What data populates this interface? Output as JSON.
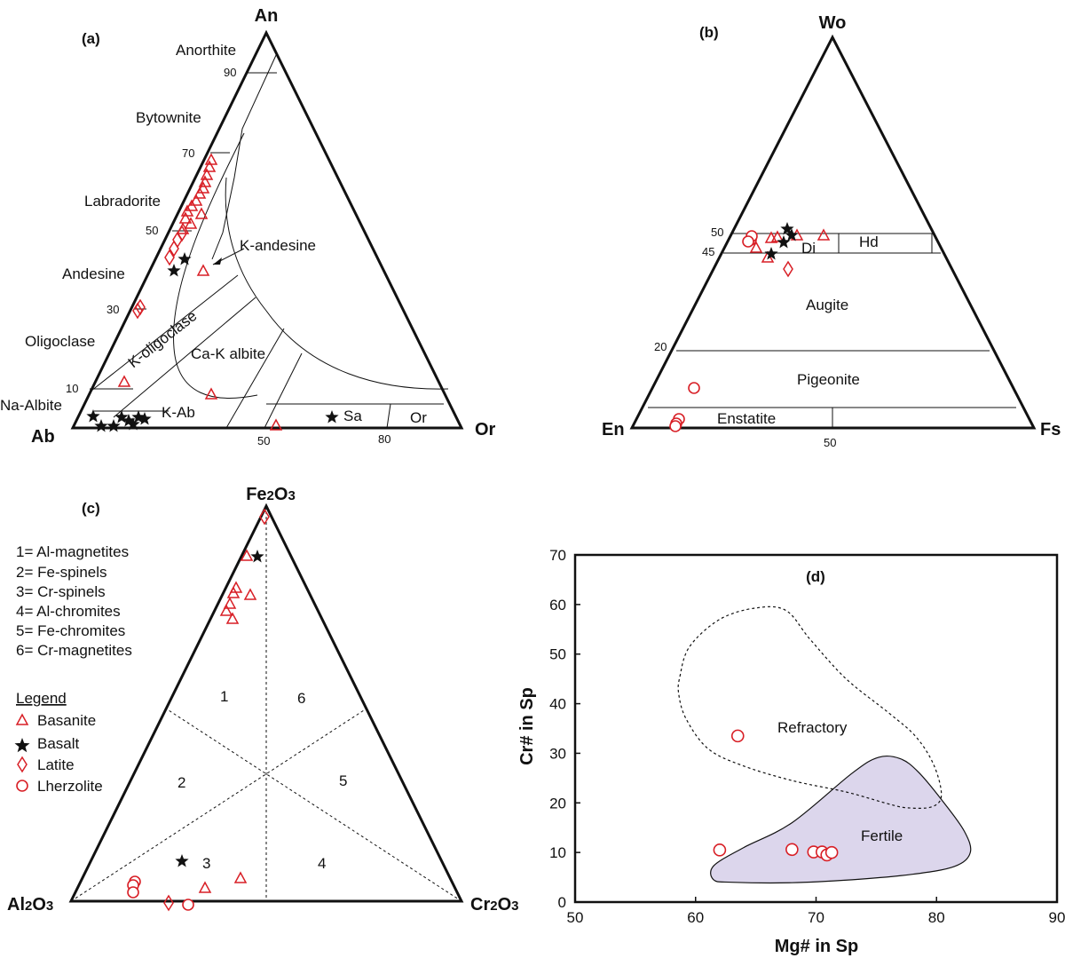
{
  "panel_a": {
    "tag": "(a)",
    "vertices": {
      "top": "An",
      "left": "Ab",
      "right": "Or"
    },
    "fields": [
      "Anorthite",
      "Bytownite",
      "Labradorite",
      "Andesine",
      "Oligoclase",
      "Na-Albite",
      "K-andesine",
      "K-oligoclase",
      "Ca-K albite",
      "K-Ab",
      "Sa",
      "Or"
    ],
    "ticks_left": [
      "90",
      "70",
      "50",
      "30",
      "10"
    ],
    "ticks_base": [
      "50",
      "80"
    ]
  },
  "panel_b": {
    "tag": "(b)",
    "vertices": {
      "top": "Wo",
      "left": "En",
      "right": "Fs"
    },
    "fields": [
      "Di",
      "Hd",
      "Augite",
      "Pigeonite",
      "Enstatite"
    ],
    "ticks_left": [
      "50",
      "45",
      "20"
    ],
    "ticks_base": [
      "50"
    ]
  },
  "panel_c": {
    "tag": "(c)",
    "vertices": {
      "top": "Fe2O3",
      "left": "Al2O3",
      "right": "Cr2O3"
    },
    "zones": [
      "1",
      "2",
      "3",
      "4",
      "5",
      "6"
    ],
    "key_lines": [
      "1= Al-magnetites",
      "2= Fe-spinels",
      "3= Cr-spinels",
      "4= Al-chromites",
      "5= Fe-chromites",
      "6= Cr-magnetites"
    ]
  },
  "legend": {
    "title": "Legend",
    "items": [
      "Basanite",
      "Basalt",
      "Latite",
      "Lherzolite"
    ],
    "colors": {
      "basanite": "#d81f26",
      "basalt": "#111111",
      "latite": "#d81f26",
      "lherzolite": "#d81f26"
    }
  },
  "chart_data": {
    "type": "scatter",
    "tag": "(d)",
    "xlabel": "Mg# in Sp",
    "ylabel": "Cr# in Sp",
    "xlim": [
      50,
      90
    ],
    "ylim": [
      0,
      70
    ],
    "xticks": [
      "50",
      "60",
      "70",
      "80",
      "90"
    ],
    "yticks": [
      "0",
      "10",
      "20",
      "30",
      "40",
      "50",
      "60",
      "70"
    ],
    "regions": [
      "Refractory",
      "Fertile"
    ],
    "region_fill": "#dcd6ec",
    "series": [
      {
        "name": "Lherzolite",
        "points": [
          [
            63.5,
            33.5
          ],
          [
            62,
            10.5
          ],
          [
            68,
            10.6
          ],
          [
            69.8,
            10.1
          ],
          [
            70.5,
            10.1
          ],
          [
            70.9,
            9.5
          ],
          [
            71.3,
            10
          ]
        ]
      }
    ],
    "fertile_outline": [
      [
        61.5,
        4.5
      ],
      [
        61.5,
        7.3
      ],
      [
        64,
        11
      ],
      [
        68,
        16
      ],
      [
        73,
        26
      ],
      [
        75.2,
        29.2
      ],
      [
        77,
        28.9
      ],
      [
        78.5,
        26.2
      ],
      [
        80.5,
        20.4
      ],
      [
        82.3,
        14.3
      ],
      [
        82.8,
        10
      ],
      [
        81.5,
        7.2
      ],
      [
        78,
        5.6
      ],
      [
        73,
        4.5
      ],
      [
        68,
        3.9
      ],
      [
        63,
        4
      ]
    ],
    "refractory_outline": [
      [
        58.7,
        45.5
      ],
      [
        59.5,
        51.5
      ],
      [
        62,
        57
      ],
      [
        65,
        59.3
      ],
      [
        67.5,
        58.8
      ],
      [
        69.5,
        53
      ],
      [
        72.5,
        45
      ],
      [
        76,
        38.2
      ],
      [
        78.3,
        33.3
      ],
      [
        79.8,
        27.5
      ],
      [
        80.4,
        21.5
      ],
      [
        79.6,
        19.2
      ],
      [
        77.6,
        19
      ],
      [
        76,
        19.8
      ],
      [
        72.5,
        22.2
      ],
      [
        68,
        24.5
      ],
      [
        63.8,
        27.6
      ],
      [
        61,
        31
      ],
      [
        59.2,
        37
      ],
      [
        58.6,
        42
      ]
    ]
  }
}
